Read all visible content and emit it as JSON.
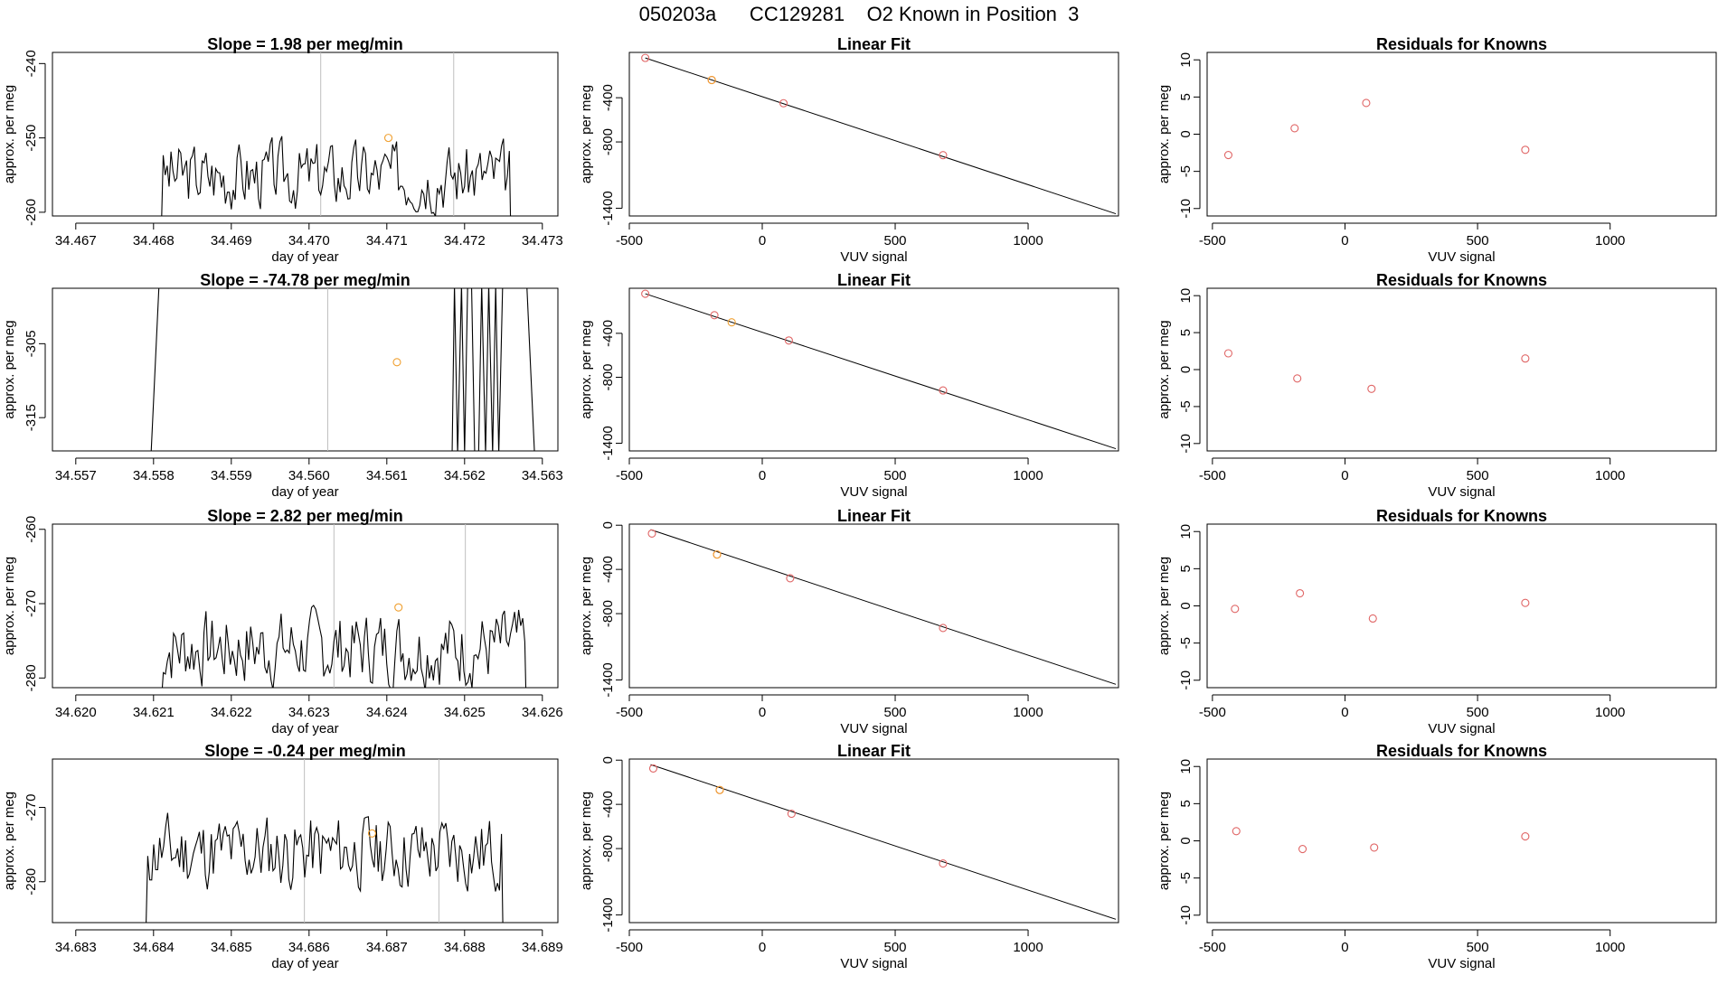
{
  "page": {
    "title": "050203a      CC129281    O2 Known in Position  3"
  },
  "colors": {
    "axis": "#000000",
    "trace": "#000000",
    "marker_line": "#bfbfbf",
    "known_point": "#e06666",
    "sample_point": "#f0a030",
    "fit_line": "#000000"
  },
  "chart_data": [
    {
      "type": "line",
      "panel": "timeseries",
      "row": 0,
      "title": "Slope =  1.98  per meg/min",
      "xlabel": "day of year",
      "ylabel": "approx. per meg",
      "xlim": [
        34.4667,
        34.4732
      ],
      "ylim": [
        -260.5,
        -238.5
      ],
      "xticks": [
        34.467,
        34.468,
        34.469,
        34.47,
        34.471,
        34.472,
        34.473
      ],
      "xtick_labels": [
        "34.467",
        "34.468",
        "34.469",
        "34.470",
        "34.471",
        "34.472",
        "34.473"
      ],
      "yticks": [
        -240,
        -250,
        -260
      ],
      "ytick_labels": [
        "-240",
        "-250",
        "-260"
      ],
      "vlines": [
        34.47015,
        34.47186
      ],
      "sample_point": {
        "x": 34.47102,
        "y": -250
      },
      "series_start": 34.4681,
      "series_end": 34.4726,
      "y_base": -255,
      "y_slope_per_day": 1500,
      "y_amp": 4,
      "y_seed": 3
    },
    {
      "type": "scatter",
      "panel": "linear_fit",
      "row": 0,
      "title": "Linear Fit",
      "xlabel": "VUV signal",
      "ylabel": "approx. per meg",
      "xlim": [
        -500,
        1340
      ],
      "ylim": [
        -1470,
        10
      ],
      "xticks": [
        -500,
        0,
        500,
        1000
      ],
      "xtick_labels": [
        "-500",
        "0",
        "500",
        "1000"
      ],
      "yticks": [
        -400,
        -800,
        -1400
      ],
      "ytick_labels": [
        "-400",
        "-800",
        "-1400"
      ],
      "fit_line": {
        "x": [
          -440,
          1330
        ],
        "y": [
          -40,
          -1450
        ]
      },
      "knowns": [
        {
          "x": -440,
          "y": -40
        },
        {
          "x": -190,
          "y": -240
        },
        {
          "x": 80,
          "y": -450
        },
        {
          "x": 680,
          "y": -920
        }
      ],
      "samples": [
        {
          "x": -190,
          "y": -240
        }
      ]
    },
    {
      "type": "scatter",
      "panel": "residuals",
      "row": 0,
      "title": "Residuals for Knowns",
      "xlabel": "VUV signal",
      "ylabel": "approx. per meg",
      "xlim": [
        -520,
        1400
      ],
      "ylim": [
        -11,
        11
      ],
      "xticks": [
        -500,
        0,
        500,
        1000
      ],
      "xtick_labels": [
        "-500",
        "0",
        "500",
        "1000"
      ],
      "yticks": [
        10,
        5,
        0,
        -5,
        -10
      ],
      "ytick_labels": [
        "10",
        "5",
        "0",
        "-5",
        "-10"
      ],
      "knowns": [
        {
          "x": -440,
          "y": -2.8
        },
        {
          "x": -190,
          "y": 0.8
        },
        {
          "x": 80,
          "y": 4.2
        },
        {
          "x": 680,
          "y": -2.1
        }
      ]
    },
    {
      "type": "line",
      "panel": "timeseries",
      "row": 1,
      "title": "Slope =  -74.78  per meg/min",
      "xlabel": "day of year",
      "ylabel": "approx. per meg",
      "xlim": [
        34.5567,
        34.5632
      ],
      "ylim": [
        -319.5,
        -297.5
      ],
      "xticks": [
        34.557,
        34.558,
        34.559,
        34.56,
        34.561,
        34.562,
        34.563
      ],
      "xtick_labels": [
        "34.557",
        "34.558",
        "34.559",
        "34.560",
        "34.561",
        "34.562",
        "34.563"
      ],
      "yticks": [
        -305,
        -315
      ],
      "ytick_labels": [
        "-305",
        "-315"
      ],
      "vlines": [
        34.56024
      ],
      "sample_point": {
        "x": 34.56113,
        "y": -307.5
      },
      "segments": [
        {
          "x": [
            34.55792,
            34.55797,
            34.55807
          ],
          "y": [
            -330,
            -319.6,
            -297.2
          ]
        },
        {
          "x": [
            34.56184,
            34.56187,
            34.56191,
            34.56196,
            34.562,
            34.56204,
            34.56209,
            34.56213,
            34.56218,
            34.56222,
            34.56227,
            34.56231,
            34.56236,
            34.5624,
            34.56244,
            34.56249
          ],
          "y": [
            -320,
            -297,
            -320,
            -297,
            -320,
            -297,
            -297,
            -320,
            -320,
            -297,
            -320,
            -297,
            -320,
            -297,
            -320,
            -297
          ]
        },
        {
          "x": [
            34.5628,
            34.5629
          ],
          "y": [
            -297,
            -320
          ]
        }
      ]
    },
    {
      "type": "scatter",
      "panel": "linear_fit",
      "row": 1,
      "title": "Linear Fit",
      "xlabel": "VUV signal",
      "ylabel": "approx. per meg",
      "xlim": [
        -500,
        1340
      ],
      "ylim": [
        -1470,
        10
      ],
      "xticks": [
        -500,
        0,
        500,
        1000
      ],
      "xtick_labels": [
        "-500",
        "0",
        "500",
        "1000"
      ],
      "yticks": [
        -400,
        -800,
        -1400
      ],
      "ytick_labels": [
        "-400",
        "-800",
        "-1400"
      ],
      "fit_line": {
        "x": [
          -440,
          1330
        ],
        "y": [
          -40,
          -1450
        ]
      },
      "knowns": [
        {
          "x": -440,
          "y": -40
        },
        {
          "x": -180,
          "y": -235
        },
        {
          "x": 100,
          "y": -465
        },
        {
          "x": 680,
          "y": -920
        }
      ],
      "samples": [
        {
          "x": -115,
          "y": -300
        }
      ]
    },
    {
      "type": "scatter",
      "panel": "residuals",
      "row": 1,
      "title": "Residuals for Knowns",
      "xlabel": "VUV signal",
      "ylabel": "approx. per meg",
      "xlim": [
        -520,
        1400
      ],
      "ylim": [
        -11,
        11
      ],
      "xticks": [
        -500,
        0,
        500,
        1000
      ],
      "xtick_labels": [
        "-500",
        "0",
        "500",
        "1000"
      ],
      "yticks": [
        10,
        5,
        0,
        -5,
        -10
      ],
      "ytick_labels": [
        "10",
        "5",
        "0",
        "-5",
        "-10"
      ],
      "knowns": [
        {
          "x": -440,
          "y": 2.2
        },
        {
          "x": -180,
          "y": -1.2
        },
        {
          "x": 100,
          "y": -2.6
        },
        {
          "x": 680,
          "y": 1.5
        }
      ]
    },
    {
      "type": "line",
      "panel": "timeseries",
      "row": 2,
      "title": "Slope =  2.82  per meg/min",
      "xlabel": "day of year",
      "ylabel": "approx. per meg",
      "xlim": [
        34.6197,
        34.6262
      ],
      "ylim": [
        -281.3,
        -259.3
      ],
      "xticks": [
        34.62,
        34.621,
        34.622,
        34.623,
        34.624,
        34.625,
        34.626
      ],
      "xtick_labels": [
        "34.620",
        "34.621",
        "34.622",
        "34.623",
        "34.624",
        "34.625",
        "34.626"
      ],
      "yticks": [
        -260,
        -270,
        -280
      ],
      "ytick_labels": [
        "-260",
        "-270",
        "-280"
      ],
      "vlines": [
        34.62332,
        34.62501
      ],
      "sample_point": {
        "x": 34.62415,
        "y": -270.5
      },
      "series_start": 34.6211,
      "series_end": 34.6258,
      "y_base": -276,
      "y_slope_per_day": 2600,
      "y_amp": 4.5,
      "y_seed": 7
    },
    {
      "type": "scatter",
      "panel": "linear_fit",
      "row": 2,
      "title": "Linear Fit",
      "xlabel": "VUV signal",
      "ylabel": "approx. per meg",
      "xlim": [
        -500,
        1340
      ],
      "ylim": [
        -1470,
        10
      ],
      "xticks": [
        -500,
        0,
        500,
        1000
      ],
      "xtick_labels": [
        "-500",
        "0",
        "500",
        "1000"
      ],
      "yticks": [
        0,
        -400,
        -800,
        -1400
      ],
      "ytick_labels": [
        "0",
        "-400",
        "-800",
        "-1400"
      ],
      "fit_line": {
        "x": [
          -420,
          1330
        ],
        "y": [
          -40,
          -1440
        ]
      },
      "knowns": [
        {
          "x": -415,
          "y": -75
        },
        {
          "x": -170,
          "y": -265
        },
        {
          "x": 105,
          "y": -480
        },
        {
          "x": 680,
          "y": -930
        }
      ],
      "samples": [
        {
          "x": -170,
          "y": -265
        }
      ]
    },
    {
      "type": "scatter",
      "panel": "residuals",
      "row": 2,
      "title": "Residuals for Knowns",
      "xlabel": "VUV signal",
      "ylabel": "approx. per meg",
      "xlim": [
        -520,
        1400
      ],
      "ylim": [
        -11,
        11
      ],
      "xticks": [
        -500,
        0,
        500,
        1000
      ],
      "xtick_labels": [
        "-500",
        "0",
        "500",
        "1000"
      ],
      "yticks": [
        10,
        5,
        0,
        -5,
        -10
      ],
      "ytick_labels": [
        "10",
        "5",
        "0",
        "-5",
        "-10"
      ],
      "knowns": [
        {
          "x": -415,
          "y": -0.4
        },
        {
          "x": -170,
          "y": 1.7
        },
        {
          "x": 105,
          "y": -1.7
        },
        {
          "x": 680,
          "y": 0.4
        }
      ]
    },
    {
      "type": "line",
      "panel": "timeseries",
      "row": 3,
      "title": "Slope =  -0.24  per meg/min",
      "xlabel": "day of year",
      "ylabel": "approx. per meg",
      "xlim": [
        34.6827,
        34.6892
      ],
      "ylim": [
        -285.5,
        -263.5
      ],
      "xticks": [
        34.683,
        34.684,
        34.685,
        34.686,
        34.687,
        34.688,
        34.689
      ],
      "xtick_labels": [
        "34.683",
        "34.684",
        "34.685",
        "34.686",
        "34.687",
        "34.688",
        "34.689"
      ],
      "yticks": [
        -270,
        -280
      ],
      "ytick_labels": [
        "-270",
        "-280"
      ],
      "vlines": [
        34.68594,
        34.68767
      ],
      "sample_point": {
        "x": 34.68681,
        "y": -273.5
      },
      "series_start": 34.6839,
      "series_end": 34.6885,
      "y_base": -276,
      "y_slope_per_day": 0,
      "y_amp": 4.5,
      "y_seed": 11
    },
    {
      "type": "scatter",
      "panel": "linear_fit",
      "row": 3,
      "title": "Linear Fit",
      "xlabel": "VUV signal",
      "ylabel": "approx. per meg",
      "xlim": [
        -500,
        1340
      ],
      "ylim": [
        -1470,
        10
      ],
      "xticks": [
        -500,
        0,
        500,
        1000
      ],
      "xtick_labels": [
        "-500",
        "0",
        "500",
        "1000"
      ],
      "yticks": [
        0,
        -400,
        -800,
        -1400
      ],
      "ytick_labels": [
        "0",
        "-400",
        "-800",
        "-1400"
      ],
      "fit_line": {
        "x": [
          -420,
          1330
        ],
        "y": [
          -40,
          -1440
        ]
      },
      "knowns": [
        {
          "x": -410,
          "y": -75
        },
        {
          "x": -160,
          "y": -270
        },
        {
          "x": 110,
          "y": -485
        },
        {
          "x": 680,
          "y": -935
        }
      ],
      "samples": [
        {
          "x": -160,
          "y": -270
        }
      ]
    },
    {
      "type": "scatter",
      "panel": "residuals",
      "row": 3,
      "title": "Residuals for Knowns",
      "xlabel": "VUV signal",
      "ylabel": "approx. per meg",
      "xlim": [
        -520,
        1400
      ],
      "ylim": [
        -11,
        11
      ],
      "xticks": [
        -500,
        0,
        500,
        1000
      ],
      "xtick_labels": [
        "-500",
        "0",
        "500",
        "1000"
      ],
      "yticks": [
        10,
        5,
        0,
        -5,
        -10
      ],
      "ytick_labels": [
        "10",
        "5",
        "0",
        "-5",
        "-10"
      ],
      "knowns": [
        {
          "x": -410,
          "y": 1.3
        },
        {
          "x": -160,
          "y": -1.1
        },
        {
          "x": 110,
          "y": -0.9
        },
        {
          "x": 680,
          "y": 0.6
        }
      ]
    }
  ]
}
